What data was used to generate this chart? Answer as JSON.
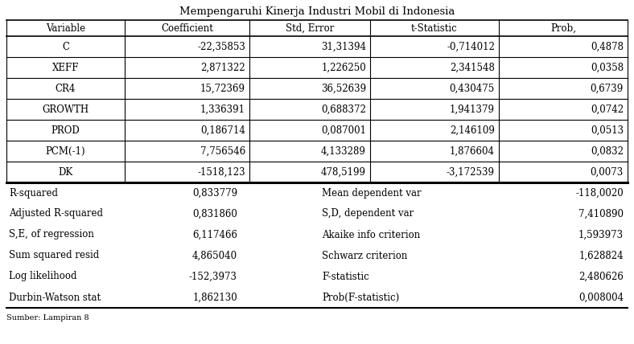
{
  "title": "Mempengaruhi Kinerja Industri Mobil di Indonesia",
  "header": [
    "Variable",
    "Coefficient",
    "Std, Error",
    "t-Statistic",
    "Prob,"
  ],
  "rows": [
    [
      "C",
      "-22,35853",
      "31,31394",
      "-0,714012",
      "0,4878"
    ],
    [
      "XEFF",
      "2,871322",
      "1,226250",
      "2,341548",
      "0,0358"
    ],
    [
      "CR4",
      "15,72369",
      "36,52639",
      "0,430475",
      "0,6739"
    ],
    [
      "GROWTH",
      "1,336391",
      "0,688372",
      "1,941379",
      "0,0742"
    ],
    [
      "PROD",
      "0,186714",
      "0,087001",
      "2,146109",
      "0,0513"
    ],
    [
      "PCM(-1)",
      "7,756546",
      "4,133289",
      "1,876604",
      "0,0832"
    ],
    [
      "DK",
      "-1518,123",
      "478,5199",
      "-3,172539",
      "0,0073"
    ]
  ],
  "stats_left": [
    [
      "R-squared",
      "0,833779"
    ],
    [
      "Adjusted R-squared",
      "0,831860"
    ],
    [
      "S,E, of regression",
      "6,117466"
    ],
    [
      "Sum squared resid",
      "4,865040"
    ],
    [
      "Log likelihood",
      "-152,3973"
    ],
    [
      "Durbin-Watson stat",
      "1,862130"
    ]
  ],
  "stats_right": [
    [
      "Mean dependent var",
      "-118,0020"
    ],
    [
      "S,D, dependent var",
      "7,410890"
    ],
    [
      "Akaike info criterion",
      "1,593973"
    ],
    [
      "Schwarz criterion",
      "1,628824"
    ],
    [
      "F-statistic",
      "2,480626"
    ],
    [
      "Prob(F-statistic)",
      "0,008004"
    ]
  ],
  "source": "Sumber: Lampiran 8",
  "bg_color": "#ffffff",
  "text_color": "#000000",
  "font_size": 8.5,
  "title_font_size": 9.5
}
